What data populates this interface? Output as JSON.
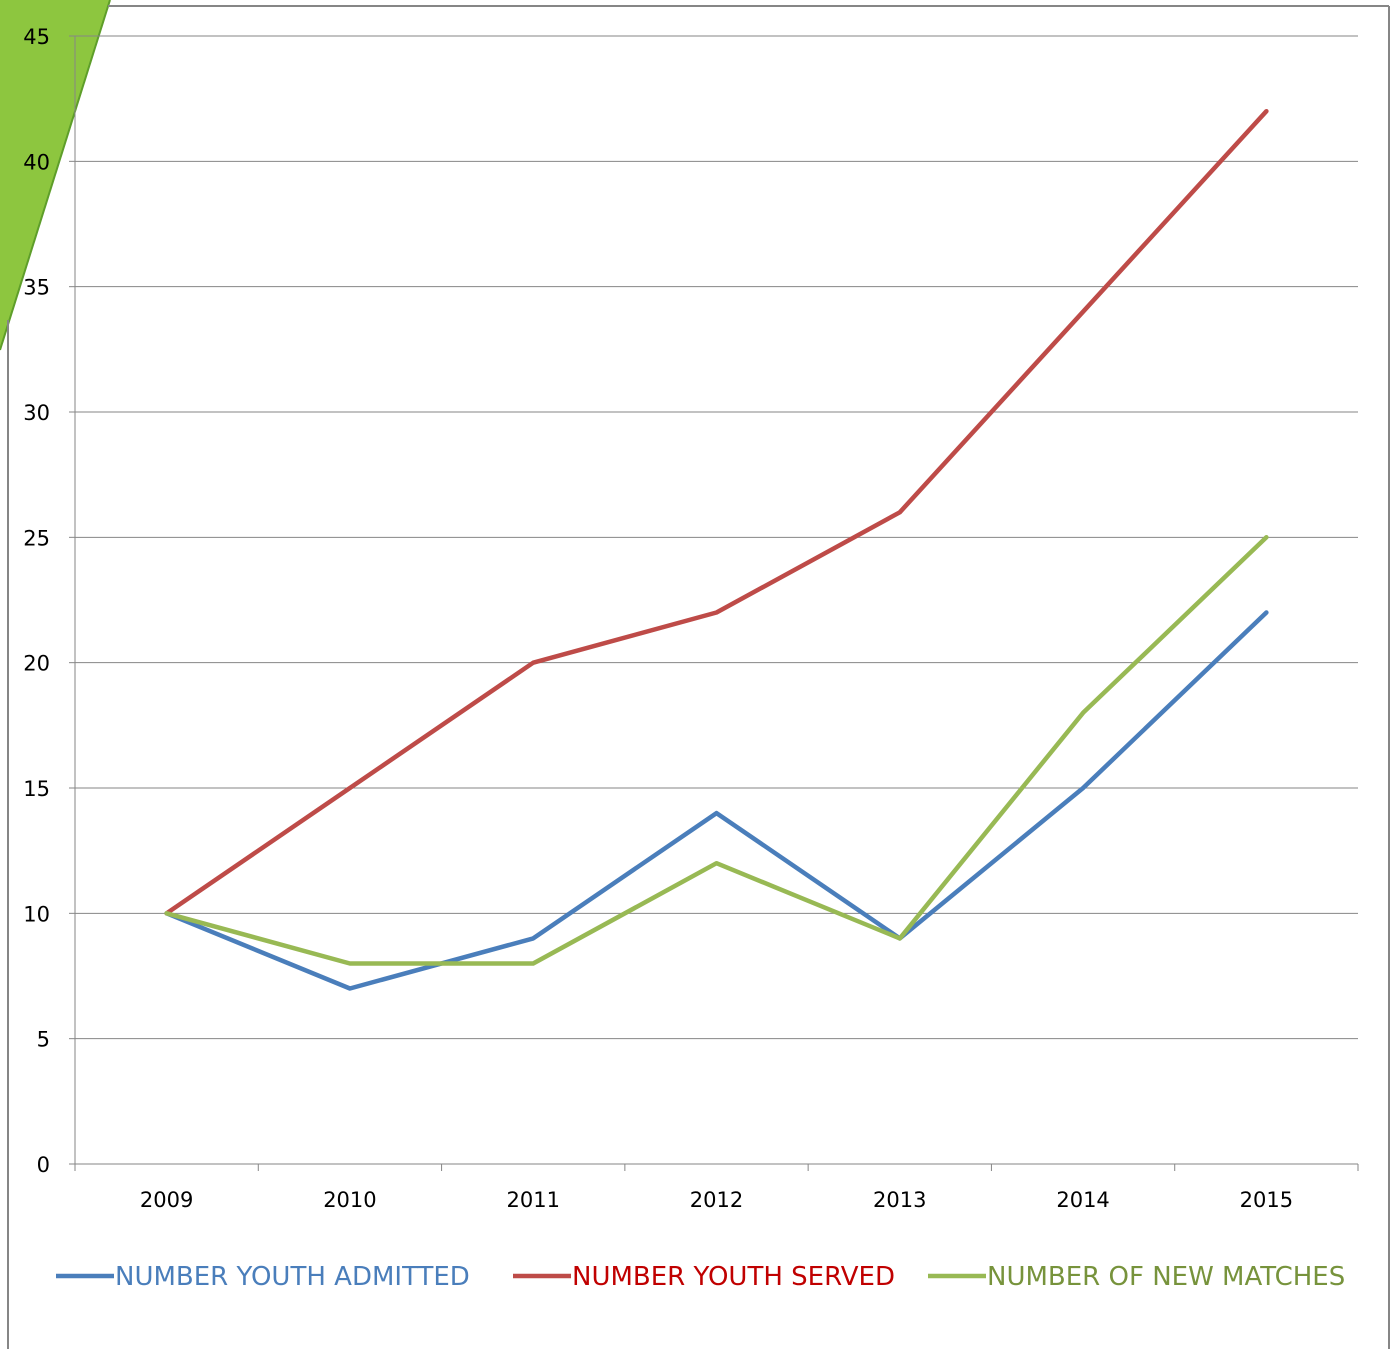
{
  "chart_data": {
    "type": "line",
    "title": "",
    "xlabel": "",
    "ylabel": "",
    "ylim": [
      0,
      45
    ],
    "y_ticks": [
      0,
      5,
      10,
      15,
      20,
      25,
      30,
      35,
      40,
      45
    ],
    "grid": "horizontal",
    "legend_position": "bottom",
    "categories": [
      "2009",
      "2010",
      "2011",
      "2012",
      "2013",
      "2014",
      "2015"
    ],
    "series": [
      {
        "name": "NUMBER YOUTH ADMITTED",
        "color": "#4A7EBB",
        "values": [
          10,
          7,
          9,
          14,
          9,
          15,
          22
        ]
      },
      {
        "name": "NUMBER YOUTH SERVED",
        "color": "#BE4B48",
        "label_color": "#C00000",
        "values": [
          10,
          15,
          20,
          22,
          26,
          34,
          42
        ]
      },
      {
        "name": "NUMBER OF NEW MATCHES",
        "color": "#98B954",
        "label_color": "#77933C",
        "values": [
          10,
          8,
          8,
          12,
          9,
          18,
          25
        ]
      }
    ],
    "colors": {
      "grid": "#868686",
      "axis": "#868686",
      "tick_text": "#000000",
      "frame": "#868686",
      "corner_accent": "#8DC63F",
      "corner_accent_dark": "#5E9E2A"
    }
  }
}
